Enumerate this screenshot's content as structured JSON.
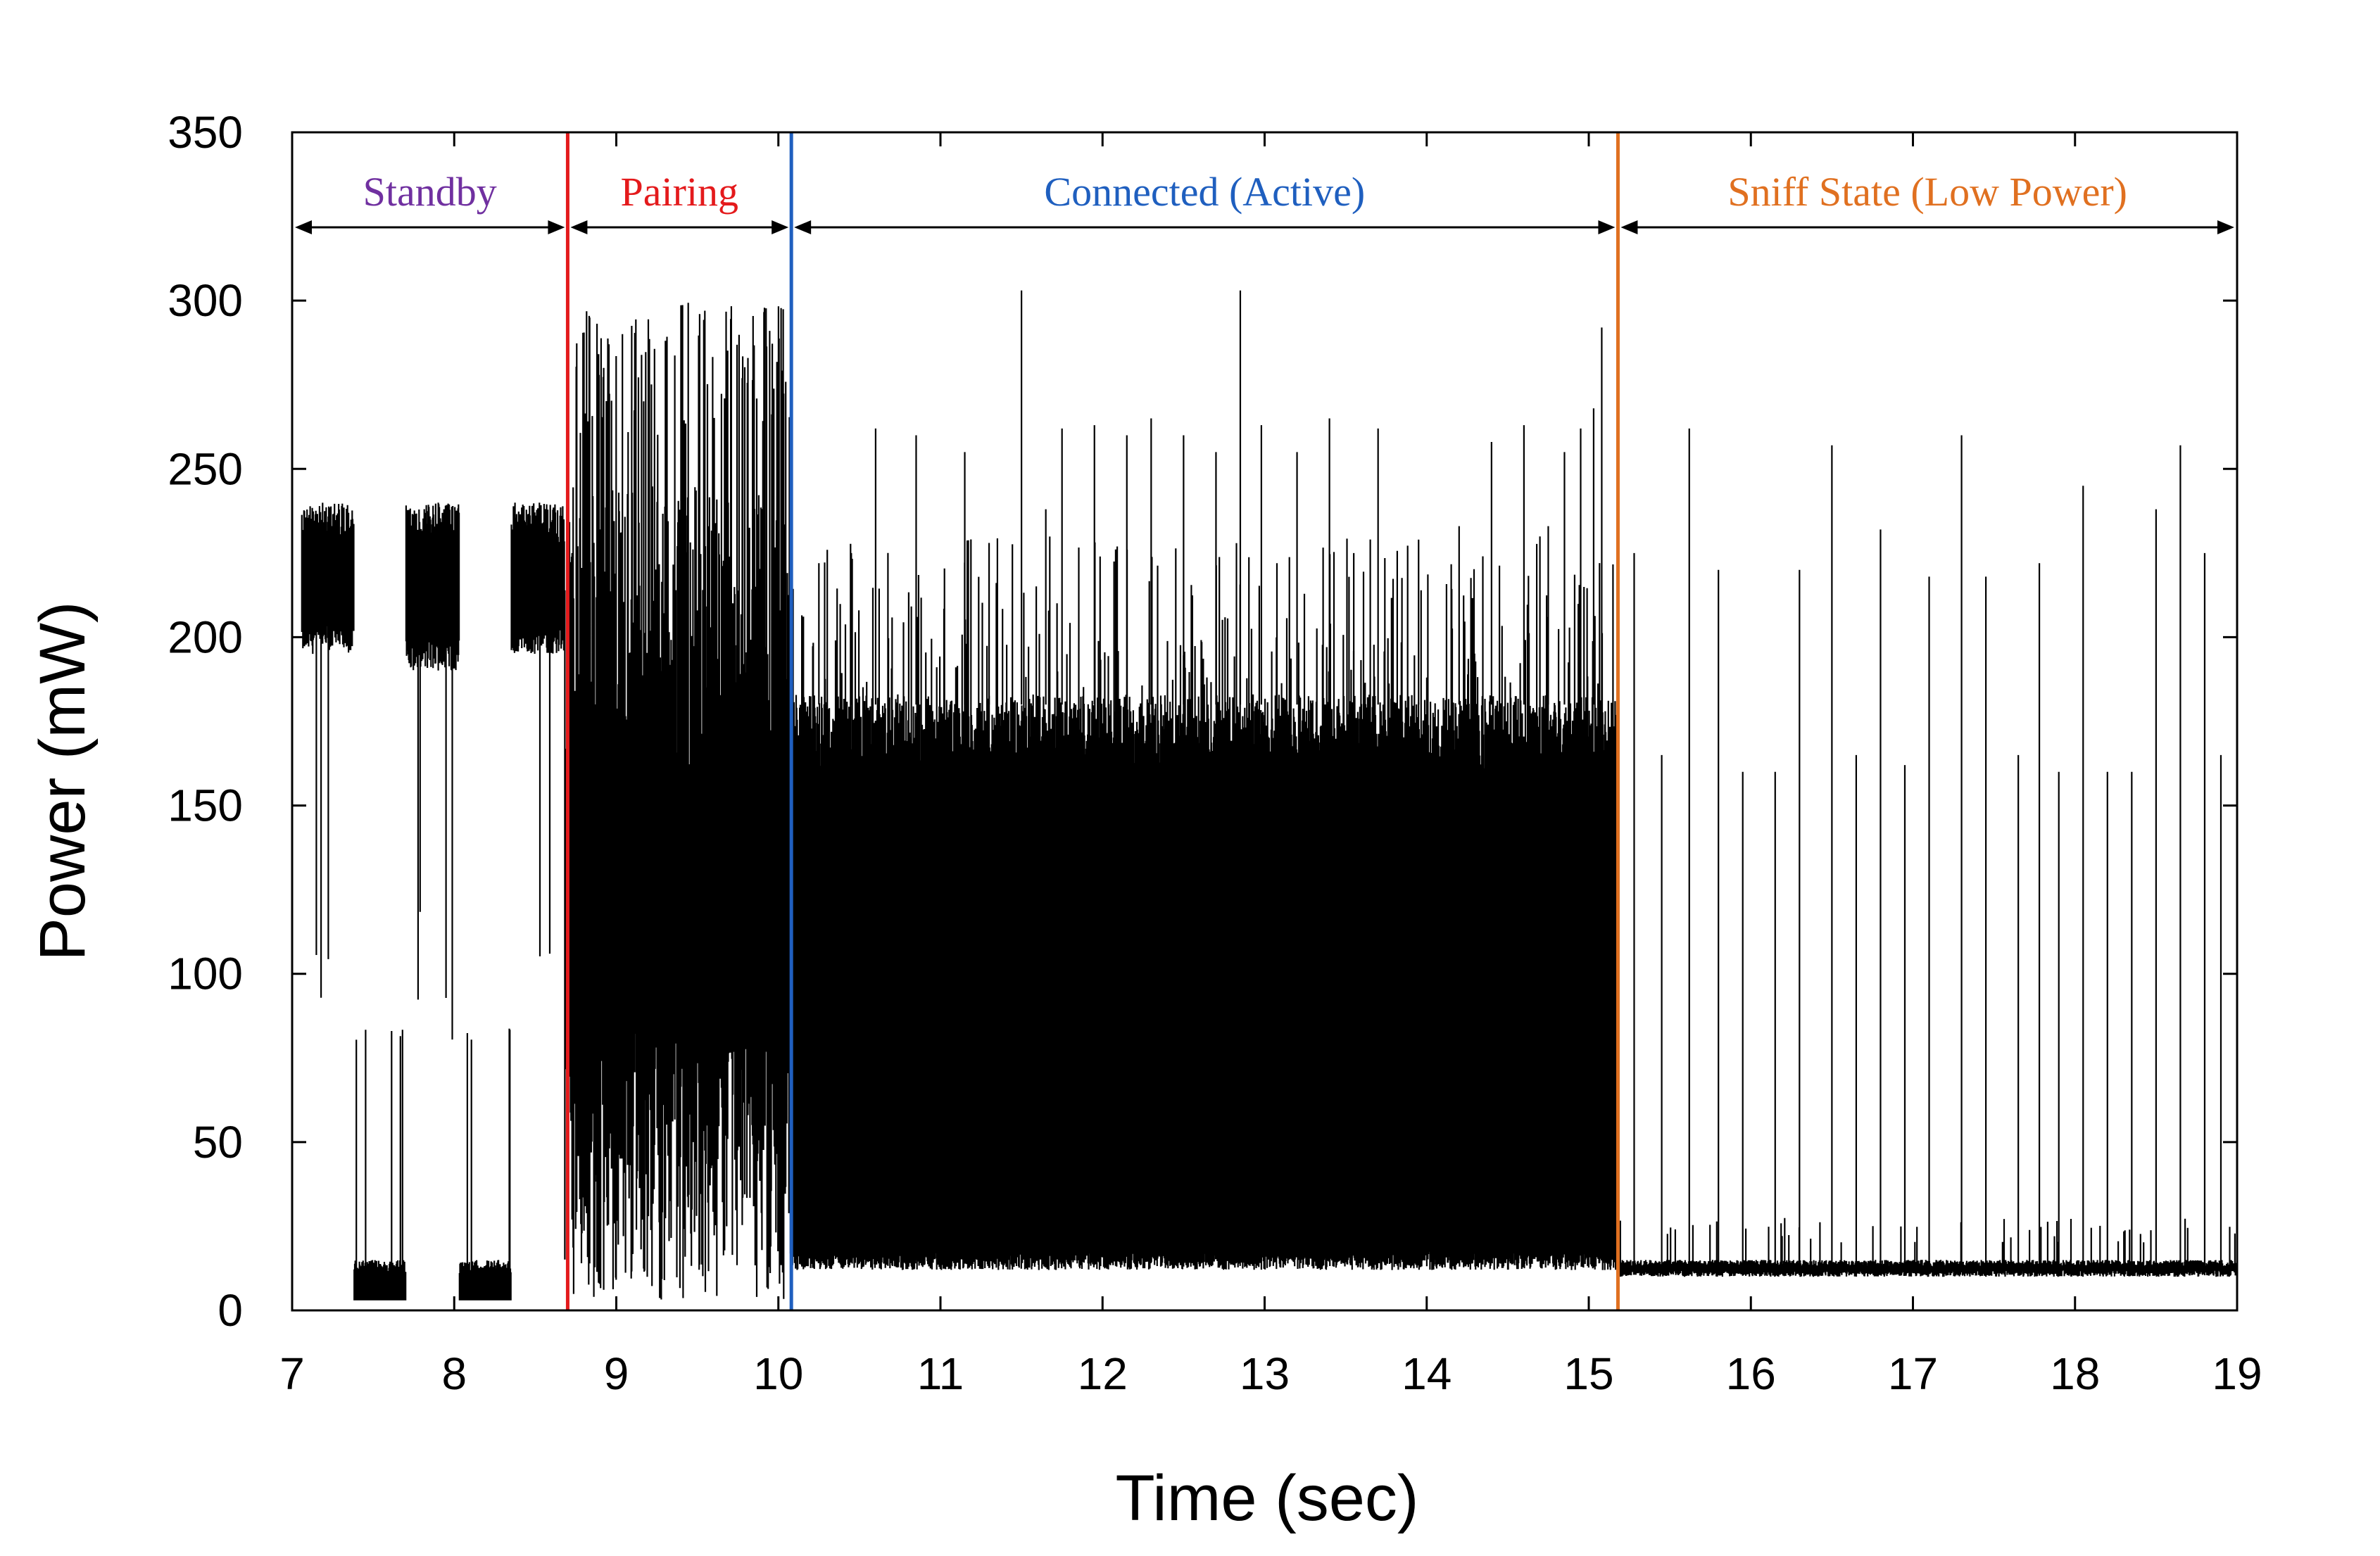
{
  "chart_data": {
    "type": "line",
    "title": "",
    "xlabel": "Time (sec)",
    "ylabel": "Power (mW)",
    "xlim": [
      7,
      19
    ],
    "ylim": [
      0,
      350
    ],
    "x_ticks": [
      7,
      8,
      9,
      10,
      11,
      12,
      13,
      14,
      15,
      16,
      17,
      18,
      19
    ],
    "y_ticks": [
      0,
      50,
      100,
      150,
      200,
      250,
      300,
      350
    ],
    "grid": false,
    "legend": "none",
    "series": [
      {
        "name": "Power",
        "color": "#000000",
        "description_points": [
          {
            "segment": "standby-burst-1",
            "x_range": [
              7.05,
              7.38
            ],
            "y_range": [
              195,
              240
            ]
          },
          {
            "segment": "standby-idle-1",
            "x_range": [
              7.38,
              7.75
            ],
            "y_range": [
              3,
              15
            ]
          },
          {
            "segment": "standby-burst-2",
            "x_range": [
              7.7,
              8.03
            ],
            "y_range": [
              190,
              240
            ]
          },
          {
            "segment": "standby-idle-2",
            "x_range": [
              8.03,
              8.38
            ],
            "y_range": [
              3,
              15
            ]
          },
          {
            "segment": "standby-burst-3",
            "x_range": [
              8.35,
              8.68
            ],
            "y_range": [
              195,
              240
            ]
          },
          {
            "segment": "pairing",
            "x_range": [
              8.68,
              10.08
            ],
            "y_range": [
              3,
              305
            ]
          },
          {
            "segment": "connected",
            "x_range": [
              10.08,
              15.18
            ],
            "y_range": [
              12,
              183
            ]
          },
          {
            "segment": "sniff",
            "x_range": [
              15.18,
              19.0
            ],
            "y_range": [
              10,
              15
            ]
          }
        ],
        "connected_spikes": [
          {
            "x": 10.25,
            "y": 222
          },
          {
            "x": 10.45,
            "y": 225
          },
          {
            "x": 10.6,
            "y": 262
          },
          {
            "x": 10.85,
            "y": 260
          },
          {
            "x": 11.15,
            "y": 255
          },
          {
            "x": 11.3,
            "y": 228
          },
          {
            "x": 11.5,
            "y": 303
          },
          {
            "x": 11.65,
            "y": 238
          },
          {
            "x": 11.75,
            "y": 262
          },
          {
            "x": 11.95,
            "y": 263
          },
          {
            "x": 12.15,
            "y": 260
          },
          {
            "x": 12.3,
            "y": 265
          },
          {
            "x": 12.5,
            "y": 260
          },
          {
            "x": 12.7,
            "y": 255
          },
          {
            "x": 12.85,
            "y": 303
          },
          {
            "x": 12.98,
            "y": 263
          },
          {
            "x": 13.2,
            "y": 255
          },
          {
            "x": 13.4,
            "y": 265
          },
          {
            "x": 13.55,
            "y": 225
          },
          {
            "x": 13.7,
            "y": 262
          },
          {
            "x": 13.95,
            "y": 229
          },
          {
            "x": 14.2,
            "y": 233
          },
          {
            "x": 14.4,
            "y": 258
          },
          {
            "x": 14.6,
            "y": 263
          },
          {
            "x": 14.75,
            "y": 233
          },
          {
            "x": 14.85,
            "y": 255
          },
          {
            "x": 14.95,
            "y": 262
          },
          {
            "x": 15.03,
            "y": 268
          },
          {
            "x": 15.08,
            "y": 292
          }
        ],
        "sniff_spikes": [
          {
            "x": 15.28,
            "y": 225
          },
          {
            "x": 15.45,
            "y": 165
          },
          {
            "x": 15.62,
            "y": 262
          },
          {
            "x": 15.8,
            "y": 220
          },
          {
            "x": 15.95,
            "y": 160
          },
          {
            "x": 16.15,
            "y": 160
          },
          {
            "x": 16.3,
            "y": 220
          },
          {
            "x": 16.5,
            "y": 257
          },
          {
            "x": 16.65,
            "y": 165
          },
          {
            "x": 16.8,
            "y": 232
          },
          {
            "x": 16.95,
            "y": 162
          },
          {
            "x": 17.1,
            "y": 218
          },
          {
            "x": 17.3,
            "y": 260
          },
          {
            "x": 17.45,
            "y": 218
          },
          {
            "x": 17.65,
            "y": 165
          },
          {
            "x": 17.78,
            "y": 222
          },
          {
            "x": 17.9,
            "y": 160
          },
          {
            "x": 18.05,
            "y": 245
          },
          {
            "x": 18.2,
            "y": 160
          },
          {
            "x": 18.35,
            "y": 160
          },
          {
            "x": 18.5,
            "y": 238
          },
          {
            "x": 18.65,
            "y": 257
          },
          {
            "x": 18.8,
            "y": 225
          },
          {
            "x": 18.9,
            "y": 165
          }
        ]
      }
    ],
    "phases": [
      {
        "label": "Standby",
        "start": 7.0,
        "end": 8.7,
        "color": "#7030a0"
      },
      {
        "label": "Pairing",
        "start": 8.7,
        "end": 10.08,
        "color": "#e41a1c"
      },
      {
        "label": "Connected (Active)",
        "start": 10.08,
        "end": 15.18,
        "color": "#1f5fbf"
      },
      {
        "label": "Sniff State (Low Power)",
        "start": 15.18,
        "end": 19.0,
        "color": "#e07020"
      }
    ],
    "dividers": [
      {
        "x": 8.7,
        "color": "#e41a1c"
      },
      {
        "x": 10.08,
        "color": "#1f5fbf"
      },
      {
        "x": 15.18,
        "color": "#e07020"
      }
    ]
  }
}
